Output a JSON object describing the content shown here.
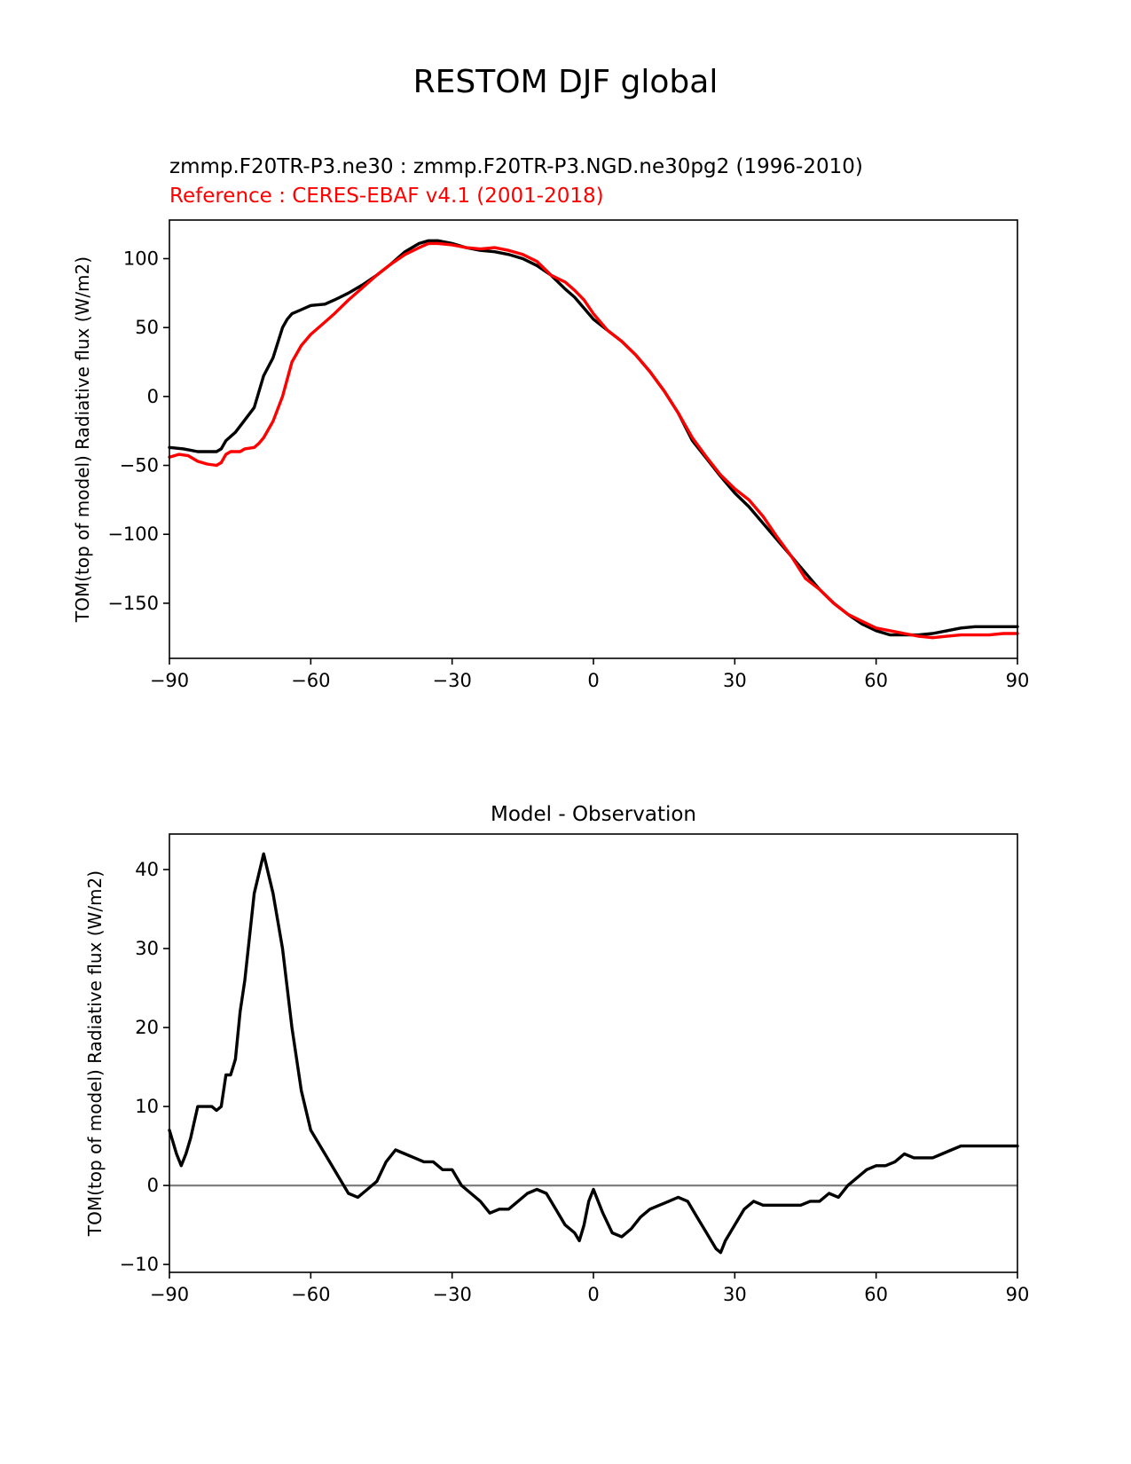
{
  "figure": {
    "suptitle": "RESTOM DJF global",
    "model_label": "zmmp.F20TR-P3.ne30 : zmmp.F20TR-P3.NGD.ne30pg2 (1996-2010)",
    "reference_label": "Reference : CERES-EBAF v4.1 (2001-2018)",
    "colors": {
      "model": "#000000",
      "reference": "#ff0000",
      "zero_line": "#808080"
    }
  },
  "chart_data": [
    {
      "type": "line",
      "title": "",
      "xlabel": "",
      "ylabel": "TOM(top of model) Radiative flux (W/m2)",
      "xlim": [
        -90,
        90
      ],
      "ylim": [
        -190,
        128
      ],
      "xticks": [
        -90,
        -60,
        -30,
        0,
        30,
        60,
        90
      ],
      "xtick_labels": [
        "−90",
        "−60",
        "−30",
        "0",
        "30",
        "60",
        "90"
      ],
      "yticks": [
        100,
        50,
        0,
        -50,
        -100,
        -150
      ],
      "ytick_labels": [
        "100",
        "50",
        "0",
        "−50",
        "−100",
        "−150"
      ],
      "grid": false,
      "series": [
        {
          "color": "#000000",
          "x": [
            -90,
            -87,
            -84,
            -82,
            -80,
            -79,
            -78,
            -76,
            -74,
            -72,
            -70,
            -68,
            -66,
            -65,
            -64,
            -62,
            -60,
            -57,
            -55,
            -52,
            -49,
            -46,
            -43,
            -40,
            -37,
            -35,
            -33,
            -30,
            -27,
            -24,
            -21,
            -18,
            -15,
            -12,
            -9,
            -6,
            -4,
            -2,
            0,
            3,
            6,
            9,
            12,
            15,
            18,
            21,
            24,
            27,
            30,
            33,
            36,
            39,
            42,
            45,
            48,
            51,
            54,
            57,
            60,
            63,
            66,
            69,
            72,
            75,
            78,
            81,
            84,
            87,
            90
          ],
          "y": [
            -37,
            -38,
            -40,
            -40,
            -40,
            -38,
            -32,
            -26,
            -17,
            -8,
            15,
            28,
            50,
            56,
            60,
            63,
            66,
            67,
            70,
            75,
            81,
            88,
            96,
            105,
            111,
            113,
            113,
            111,
            108,
            106,
            105,
            103,
            100,
            95,
            88,
            78,
            72,
            64,
            56,
            48,
            40,
            30,
            18,
            4,
            -12,
            -32,
            -45,
            -58,
            -70,
            -80,
            -92,
            -104,
            -116,
            -128,
            -140,
            -150,
            -158,
            -165,
            -170,
            -173,
            -173,
            -173,
            -172,
            -170,
            -168,
            -167,
            -167,
            -167,
            -167
          ]
        },
        {
          "color": "#ff0000",
          "x": [
            -90,
            -88,
            -86,
            -84,
            -82,
            -80,
            -79,
            -78,
            -77,
            -76,
            -75,
            -74,
            -72,
            -71,
            -70,
            -68,
            -66,
            -64,
            -62,
            -60,
            -57,
            -55,
            -52,
            -49,
            -46,
            -43,
            -40,
            -37,
            -35,
            -33,
            -30,
            -27,
            -24,
            -21,
            -18,
            -15,
            -12,
            -9,
            -6,
            -4,
            -2,
            0,
            3,
            6,
            9,
            12,
            15,
            18,
            21,
            24,
            27,
            30,
            33,
            36,
            39,
            42,
            45,
            48,
            51,
            54,
            57,
            60,
            63,
            66,
            69,
            72,
            75,
            78,
            81,
            84,
            87,
            90
          ],
          "y": [
            -44,
            -42,
            -43,
            -47,
            -49,
            -50,
            -48,
            -42,
            -40,
            -40,
            -40,
            -38,
            -37,
            -34,
            -30,
            -18,
            0,
            25,
            37,
            45,
            54,
            60,
            70,
            79,
            88,
            96,
            103,
            108,
            111,
            111,
            110,
            108,
            107,
            108,
            106,
            103,
            98,
            88,
            83,
            77,
            70,
            60,
            48,
            40,
            30,
            18,
            4,
            -12,
            -30,
            -44,
            -57,
            -67,
            -75,
            -87,
            -102,
            -116,
            -132,
            -140,
            -150,
            -158,
            -163,
            -168,
            -170,
            -172,
            -174,
            -175,
            -174,
            -173,
            -173,
            -173,
            -172,
            -172
          ]
        }
      ]
    },
    {
      "type": "line",
      "title": "Model - Observation",
      "xlabel": "",
      "ylabel": "TOM(top of model) Radiative flux (W/m2)",
      "xlim": [
        -90,
        90
      ],
      "ylim": [
        -11,
        44.5
      ],
      "xticks": [
        -90,
        -60,
        -30,
        0,
        30,
        60,
        90
      ],
      "xtick_labels": [
        "−90",
        "−60",
        "−30",
        "0",
        "30",
        "60",
        "90"
      ],
      "yticks": [
        40,
        30,
        20,
        10,
        0,
        -10
      ],
      "ytick_labels": [
        "40",
        "30",
        "20",
        "10",
        "0",
        "−10"
      ],
      "grid": false,
      "reference_line": 0,
      "series": [
        {
          "color": "#000000",
          "x": [
            -90,
            -88.5,
            -87.5,
            -86.5,
            -85.5,
            -84,
            -82,
            -81,
            -80,
            -79,
            -78,
            -77,
            -76,
            -75,
            -74,
            -72,
            -70,
            -68,
            -66,
            -65,
            -64,
            -62,
            -60,
            -58,
            -56,
            -54,
            -52,
            -50,
            -48,
            -46,
            -44,
            -42,
            -40,
            -38,
            -36,
            -34,
            -32,
            -30,
            -28,
            -26,
            -24,
            -22,
            -20,
            -18,
            -16,
            -14,
            -12,
            -10,
            -8,
            -6,
            -4,
            -3,
            -2,
            -1,
            0,
            2,
            4,
            6,
            8,
            10,
            12,
            14,
            16,
            18,
            20,
            22,
            24,
            26,
            27,
            28,
            30,
            32,
            34,
            36,
            38,
            40,
            42,
            44,
            46,
            48,
            50,
            52,
            54,
            56,
            58,
            60,
            62,
            64,
            66,
            68,
            70,
            72,
            74,
            76,
            78,
            80,
            82,
            84,
            86,
            88,
            90
          ],
          "y": [
            7,
            4,
            2.5,
            4,
            6,
            10,
            10,
            10,
            9.5,
            10,
            14,
            14,
            16,
            22,
            26,
            37,
            42,
            37,
            30,
            25,
            20,
            12,
            7,
            5,
            3,
            1,
            -1,
            -1.5,
            -0.5,
            0.5,
            3,
            4.5,
            4,
            3.5,
            3,
            3,
            2,
            2,
            0,
            -1,
            -2,
            -3.5,
            -3,
            -3,
            -2,
            -1,
            -0.5,
            -1,
            -3,
            -5,
            -6,
            -7,
            -5,
            -2,
            -0.5,
            -3.5,
            -6,
            -6.5,
            -5.5,
            -4,
            -3,
            -2.5,
            -2,
            -1.5,
            -2,
            -4,
            -6,
            -8,
            -8.5,
            -7,
            -5,
            -3,
            -2,
            -2.5,
            -2.5,
            -2.5,
            -2.5,
            -2.5,
            -2,
            -2,
            -1,
            -1.5,
            0,
            1,
            2,
            2.5,
            2.5,
            3,
            4,
            3.5,
            3.5,
            3.5,
            4,
            4.5,
            5,
            5,
            5,
            5,
            5,
            5,
            5
          ]
        }
      ]
    }
  ]
}
